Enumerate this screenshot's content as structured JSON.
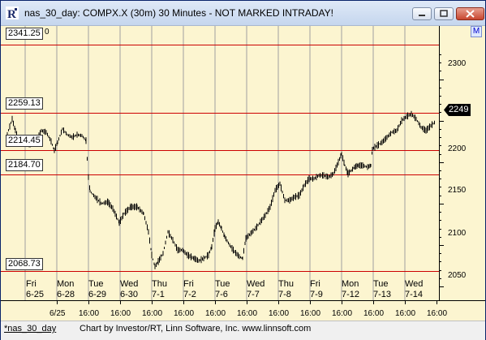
{
  "window": {
    "title": "nas_30_day: COMPX.X (30m) 30 Minutes - NOT MARKED INTRADAY!",
    "app_icon": "investor-rt-icon",
    "controls": [
      "minimize-icon",
      "maximize-icon",
      "close-icon"
    ]
  },
  "chart": {
    "marker_button": "M",
    "last_price": "2249",
    "levels": [
      "2341.25",
      "2259.13",
      "2214.45",
      "2184.70",
      "2068.73"
    ],
    "corner_label": "0",
    "y_ticks": [
      "2300",
      "2250",
      "2200",
      "2150",
      "2100",
      "2050"
    ],
    "day_labels": [
      {
        "day": "Fri",
        "date": "6-25"
      },
      {
        "day": "Mon",
        "date": "6-28"
      },
      {
        "day": "Tue",
        "date": "6-29"
      },
      {
        "day": "Wed",
        "date": "6-30"
      },
      {
        "day": "Thu",
        "date": "7-1"
      },
      {
        "day": "Fri",
        "date": "7-2"
      },
      {
        "day": "Tue",
        "date": "7-6"
      },
      {
        "day": "Wed",
        "date": "7-7"
      },
      {
        "day": "Thu",
        "date": "7-8"
      },
      {
        "day": "Fri",
        "date": "7-9"
      },
      {
        "day": "Mon",
        "date": "7-12"
      },
      {
        "day": "Tue",
        "date": "7-13"
      },
      {
        "day": "Wed",
        "date": "7-14"
      }
    ],
    "time_labels": [
      "6/25",
      "16:00",
      "16:00",
      "16:00",
      "16:00",
      "16:00",
      "16:00",
      "16:00",
      "16:00",
      "16:00",
      "16:00",
      "16:00",
      "16:00"
    ]
  },
  "status": {
    "tab": "*nas_30_day",
    "credit": "Chart by Investor/RT, Linn Software, Inc. www.linnsoft.com"
  },
  "colors": {
    "plot_background": "#fcf5d0",
    "level_line": "#cc0000",
    "day_line": "#a0a0a0",
    "price_bars": "#000000"
  }
}
